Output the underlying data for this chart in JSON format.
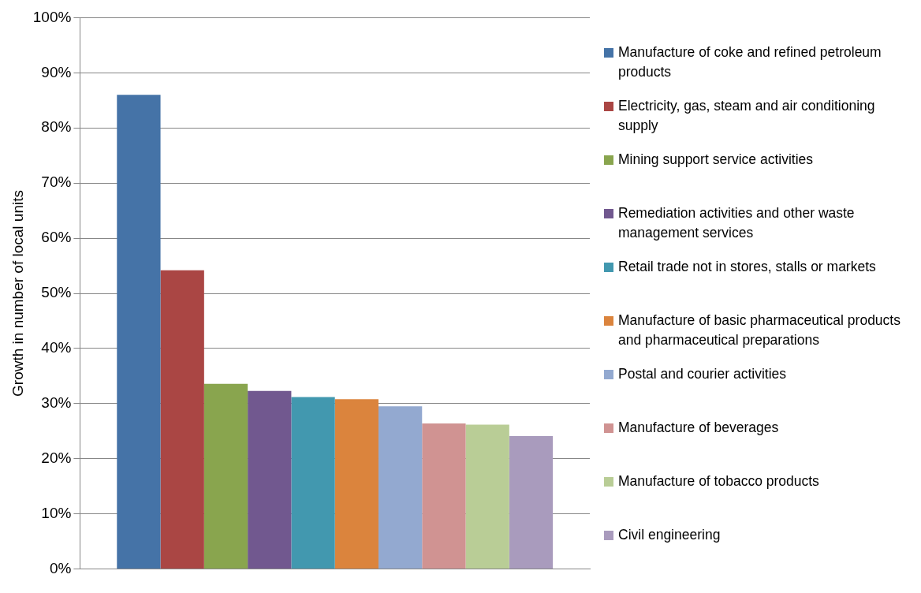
{
  "chart_data": {
    "type": "bar",
    "ylabel": "Growth in number of local units",
    "categories": [
      null
    ],
    "series": [
      {
        "name": "Manufacture of coke and refined petroleum products",
        "color": "#4573a7",
        "values": [
          86.0
        ]
      },
      {
        "name": "Electricity, gas, steam and air conditioning supply",
        "color": "#aa4644",
        "values": [
          54.2
        ]
      },
      {
        "name": "Mining support service activities",
        "color": "#89a54e",
        "values": [
          33.6
        ]
      },
      {
        "name": "Remediation activities and other waste management services",
        "color": "#71588f",
        "values": [
          32.3
        ]
      },
      {
        "name": "Retail trade not in stores, stalls or markets",
        "color": "#4298af",
        "values": [
          31.2
        ]
      },
      {
        "name": "Manufacture of basic pharmaceutical products and pharmaceutical preparations",
        "color": "#db843d",
        "values": [
          30.8
        ]
      },
      {
        "name": "Postal and courier activities",
        "color": "#93a9d0",
        "values": [
          29.5
        ]
      },
      {
        "name": "Manufacture of beverages",
        "color": "#d09392",
        "values": [
          26.4
        ]
      },
      {
        "name": "Manufacture of tobacco products",
        "color": "#b9cd96",
        "values": [
          26.2
        ]
      },
      {
        "name": "Civil engineering",
        "color": "#a99bbd",
        "values": [
          24.1
        ]
      }
    ],
    "ylim": [
      0,
      100
    ],
    "yticks": [
      {
        "value": 0,
        "label": "0%"
      },
      {
        "value": 10,
        "label": "10%"
      },
      {
        "value": 20,
        "label": "20%"
      },
      {
        "value": 30,
        "label": "30%"
      },
      {
        "value": 40,
        "label": "40%"
      },
      {
        "value": 50,
        "label": "50%"
      },
      {
        "value": 60,
        "label": "60%"
      },
      {
        "value": 70,
        "label": "70%"
      },
      {
        "value": 80,
        "label": "80%"
      },
      {
        "value": 90,
        "label": "90%"
      },
      {
        "value": 100,
        "label": "100%"
      }
    ],
    "grid": "y",
    "legend": "right"
  }
}
